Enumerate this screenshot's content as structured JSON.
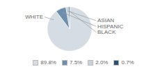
{
  "chart_data": {
    "type": "pie",
    "categories": [
      "WHITE",
      "HISPANIC",
      "ASIAN",
      "BLACK"
    ],
    "values": [
      89.8,
      7.5,
      2.0,
      0.7
    ],
    "value_labels": [
      "89.8%",
      "7.5%",
      "2.0%",
      "0.7%"
    ],
    "colors": [
      "#d6dce4",
      "#6d8fad",
      "#c9d4df",
      "#2e4e6b"
    ],
    "legend": "bottom"
  }
}
